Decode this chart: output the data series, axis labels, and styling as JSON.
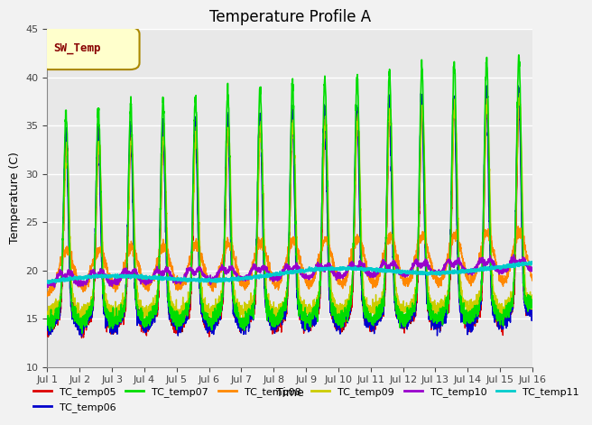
{
  "title": "Temperature Profile A",
  "xlabel": "Time",
  "ylabel": "Temperature (C)",
  "ylim": [
    10,
    45
  ],
  "yticks": [
    10,
    15,
    20,
    25,
    30,
    35,
    40,
    45
  ],
  "xtick_labels": [
    "Jul 1",
    "Jul 2",
    "Jul 3",
    "Jul 4",
    "Jul 5",
    "Jul 6",
    "Jul 7",
    "Jul 8",
    "Jul 9",
    "Jul 10",
    "Jul 11",
    "Jul 12",
    "Jul 13",
    "Jul 14",
    "Jul 15",
    "Jul 16"
  ],
  "legend_labels": [
    "TC_temp05",
    "TC_temp06",
    "TC_temp07",
    "TC_temp08",
    "TC_temp09",
    "TC_temp10",
    "TC_temp11"
  ],
  "legend_colors": [
    "#dd0000",
    "#0000cc",
    "#00dd00",
    "#ff8800",
    "#cccc00",
    "#9900cc",
    "#00cccc"
  ],
  "sw_temp_color": "#880000",
  "sw_temp_label": "SW_Temp",
  "plot_bg_color": "#e8e8e8",
  "fig_bg_color": "#f2f2f2",
  "grid_color": "#ffffff",
  "title_fontsize": 12,
  "axis_label_fontsize": 9,
  "tick_fontsize": 8,
  "legend_fontsize": 8,
  "n_points": 2880,
  "days": 15
}
